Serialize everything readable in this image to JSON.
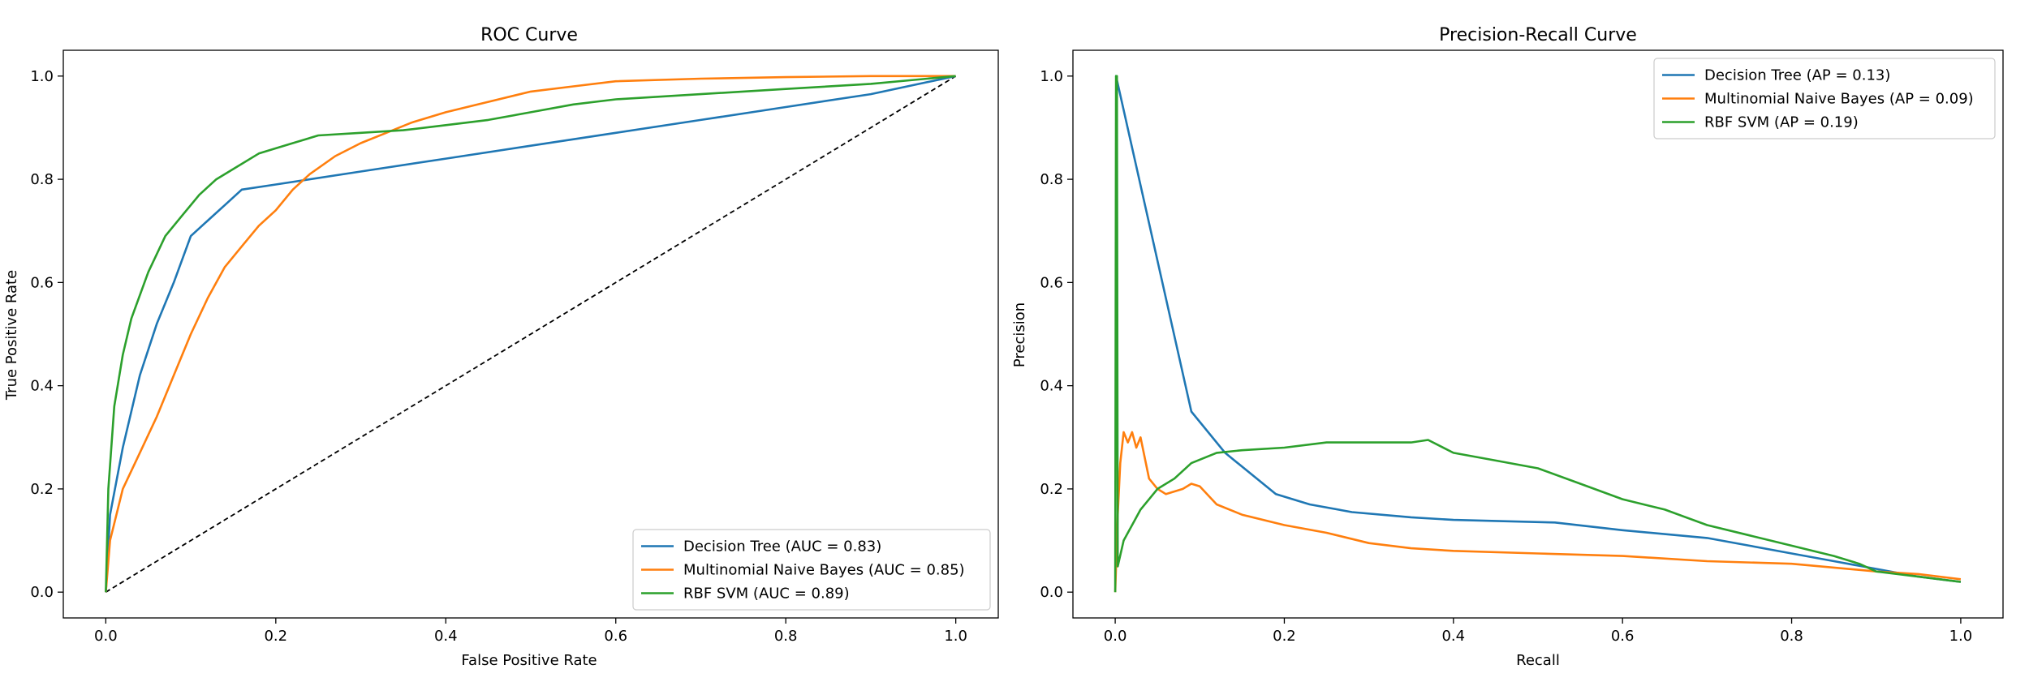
{
  "chart_data": [
    {
      "type": "line",
      "title": "ROC Curve",
      "xlabel": "False Positive Rate",
      "ylabel": "True Positive Rate",
      "xlim": [
        -0.05,
        1.05
      ],
      "ylim": [
        -0.05,
        1.05
      ],
      "xticks": [
        "0.0",
        "0.2",
        "0.4",
        "0.6",
        "0.8",
        "1.0"
      ],
      "yticks": [
        "0.0",
        "0.2",
        "0.4",
        "0.6",
        "0.8",
        "1.0"
      ],
      "grid": false,
      "legend_position": "lower-right",
      "reference_line": {
        "x": [
          0,
          1
        ],
        "y": [
          0,
          1
        ],
        "style": "dashed",
        "color": "#000000"
      },
      "series": [
        {
          "name": "Decision Tree (AUC = 0.83)",
          "color": "#1f77b4",
          "x": [
            0,
            0.005,
            0.02,
            0.04,
            0.06,
            0.08,
            0.1,
            0.12,
            0.14,
            0.16,
            0.2,
            0.3,
            0.4,
            0.5,
            0.6,
            0.7,
            0.8,
            0.9,
            1.0
          ],
          "y": [
            0,
            0.15,
            0.28,
            0.42,
            0.52,
            0.6,
            0.69,
            0.72,
            0.75,
            0.78,
            0.79,
            0.815,
            0.84,
            0.865,
            0.89,
            0.915,
            0.94,
            0.965,
            1.0
          ]
        },
        {
          "name": "Multinomial Naive Bayes (AUC = 0.85)",
          "color": "#ff7f0e",
          "x": [
            0,
            0.005,
            0.02,
            0.04,
            0.06,
            0.08,
            0.1,
            0.12,
            0.14,
            0.16,
            0.18,
            0.2,
            0.22,
            0.24,
            0.27,
            0.3,
            0.33,
            0.36,
            0.4,
            0.45,
            0.5,
            0.55,
            0.6,
            0.7,
            0.8,
            0.9,
            1.0
          ],
          "y": [
            0,
            0.1,
            0.2,
            0.27,
            0.34,
            0.42,
            0.5,
            0.57,
            0.63,
            0.67,
            0.71,
            0.74,
            0.78,
            0.81,
            0.845,
            0.87,
            0.89,
            0.91,
            0.93,
            0.95,
            0.97,
            0.98,
            0.99,
            0.995,
            0.998,
            1.0,
            1.0
          ]
        },
        {
          "name": "RBF SVM (AUC = 0.89)",
          "color": "#2ca02c",
          "x": [
            0,
            0.003,
            0.01,
            0.02,
            0.03,
            0.05,
            0.07,
            0.09,
            0.11,
            0.13,
            0.15,
            0.18,
            0.2,
            0.22,
            0.25,
            0.3,
            0.35,
            0.4,
            0.45,
            0.5,
            0.55,
            0.6,
            0.7,
            0.8,
            0.9,
            1.0
          ],
          "y": [
            0,
            0.2,
            0.36,
            0.46,
            0.53,
            0.62,
            0.69,
            0.73,
            0.77,
            0.8,
            0.82,
            0.85,
            0.86,
            0.87,
            0.885,
            0.89,
            0.895,
            0.905,
            0.915,
            0.93,
            0.945,
            0.955,
            0.965,
            0.975,
            0.985,
            1.0
          ]
        }
      ]
    },
    {
      "type": "line",
      "title": "Precision-Recall Curve",
      "xlabel": "Recall",
      "ylabel": "Precision",
      "xlim": [
        -0.05,
        1.05
      ],
      "ylim": [
        -0.05,
        1.05
      ],
      "xticks": [
        "0.0",
        "0.2",
        "0.4",
        "0.6",
        "0.8",
        "1.0"
      ],
      "yticks": [
        "0.0",
        "0.2",
        "0.4",
        "0.6",
        "0.8",
        "1.0"
      ],
      "grid": false,
      "legend_position": "upper-right",
      "series": [
        {
          "name": "Decision Tree (AP = 0.13)",
          "color": "#1f77b4",
          "x": [
            0,
            0.001,
            0.09,
            0.13,
            0.19,
            0.23,
            0.28,
            0.35,
            0.4,
            0.45,
            0.52,
            0.6,
            0.7,
            0.75,
            0.8,
            0.85,
            0.9,
            0.95,
            1.0
          ],
          "y": [
            1.0,
            1.0,
            0.35,
            0.27,
            0.19,
            0.17,
            0.155,
            0.145,
            0.14,
            0.138,
            0.135,
            0.12,
            0.105,
            0.09,
            0.075,
            0.06,
            0.045,
            0.03,
            0.02
          ]
        },
        {
          "name": "Multinomial Naive Bayes (AP = 0.09)",
          "color": "#ff7f0e",
          "x": [
            0,
            0.003,
            0.006,
            0.01,
            0.015,
            0.02,
            0.025,
            0.03,
            0.04,
            0.05,
            0.06,
            0.08,
            0.09,
            0.1,
            0.12,
            0.15,
            0.2,
            0.25,
            0.3,
            0.35,
            0.4,
            0.5,
            0.6,
            0.7,
            0.8,
            0.9,
            0.95,
            1.0
          ],
          "y": [
            0,
            0.15,
            0.25,
            0.31,
            0.29,
            0.31,
            0.28,
            0.3,
            0.22,
            0.2,
            0.19,
            0.2,
            0.21,
            0.205,
            0.17,
            0.15,
            0.13,
            0.115,
            0.095,
            0.085,
            0.08,
            0.075,
            0.07,
            0.06,
            0.055,
            0.04,
            0.035,
            0.025
          ]
        },
        {
          "name": "RBF SVM (AP = 0.19)",
          "color": "#2ca02c",
          "x": [
            0,
            0.001,
            0.002,
            0.003,
            0.01,
            0.02,
            0.03,
            0.05,
            0.07,
            0.09,
            0.12,
            0.15,
            0.2,
            0.25,
            0.3,
            0.35,
            0.37,
            0.4,
            0.45,
            0.5,
            0.55,
            0.6,
            0.65,
            0.7,
            0.75,
            0.8,
            0.85,
            0.88,
            0.9,
            0.95,
            1.0
          ],
          "y": [
            0,
            1.0,
            1.0,
            0.05,
            0.1,
            0.13,
            0.16,
            0.2,
            0.22,
            0.25,
            0.27,
            0.275,
            0.28,
            0.29,
            0.29,
            0.29,
            0.295,
            0.27,
            0.255,
            0.24,
            0.21,
            0.18,
            0.16,
            0.13,
            0.11,
            0.09,
            0.07,
            0.055,
            0.04,
            0.03,
            0.02
          ]
        }
      ]
    }
  ]
}
